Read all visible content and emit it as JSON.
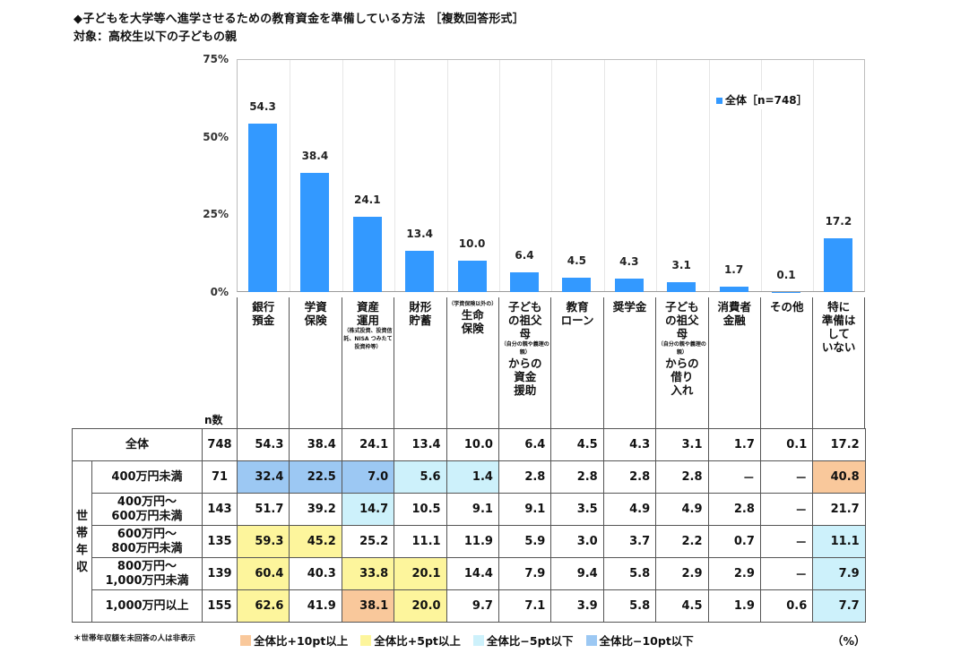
{
  "header": {
    "title": "◆子どもを大学等へ進学させるための教育資金を準備している方法 ［複数回答形式］",
    "subtitle": "対象：高校生以下の子どもの親"
  },
  "legend": {
    "label": "全体［n=748］",
    "color": "#3399ff"
  },
  "yaxis": {
    "ticks": [
      "75%",
      "50%",
      "25%",
      "0%"
    ]
  },
  "categories": [
    {
      "lines": [
        "銀行",
        "預金"
      ],
      "note": ""
    },
    {
      "lines": [
        "学資",
        "保険"
      ],
      "note": ""
    },
    {
      "lines": [
        "資産",
        "運用"
      ],
      "note": "（株式投資、投資信託、NISA つみたて 投資枠等）"
    },
    {
      "lines": [
        "財形",
        "貯蓄"
      ],
      "note": ""
    },
    {
      "pre": "（学資保険以外の）",
      "lines": [
        "生命",
        "保険"
      ],
      "note": ""
    },
    {
      "lines": [
        "子ども",
        "の祖父",
        "母"
      ],
      "note": "（自分の親や義理の親）",
      "post": [
        "からの",
        "資金",
        "援助"
      ]
    },
    {
      "lines": [
        "教育",
        "ローン"
      ],
      "note": ""
    },
    {
      "lines": [
        "奨学金"
      ],
      "note": ""
    },
    {
      "lines": [
        "子ども",
        "の祖父",
        "母"
      ],
      "note": "（自分の親や義理の親）",
      "post": [
        "からの",
        "借り",
        "入れ"
      ]
    },
    {
      "lines": [
        "消費者",
        "金融"
      ],
      "note": ""
    },
    {
      "lines": [
        "その他"
      ],
      "note": ""
    },
    {
      "lines": [
        "特に",
        "準備は",
        "して",
        "いない"
      ],
      "note": ""
    }
  ],
  "table": {
    "n_label": "n数",
    "group_label": "世帯年収",
    "rows": [
      {
        "label": "全体",
        "n": "748",
        "values": [
          "54.3",
          "38.4",
          "24.1",
          "13.4",
          "10.0",
          "6.4",
          "4.5",
          "4.3",
          "3.1",
          "1.7",
          "0.1",
          "17.2"
        ],
        "flags": [
          "",
          "",
          "",
          "",
          "",
          "",
          "",
          "",
          "",
          "",
          "",
          ""
        ]
      },
      {
        "label": "400万円未満",
        "n": "71",
        "values": [
          "32.4",
          "22.5",
          "7.0",
          "5.6",
          "1.4",
          "2.8",
          "2.8",
          "2.8",
          "2.8",
          "－",
          "－",
          "40.8"
        ],
        "flags": [
          "m10",
          "m10",
          "m10",
          "m5",
          "m5",
          "",
          "",
          "",
          "",
          "",
          "",
          "p10"
        ]
      },
      {
        "label": "400万円～\n600万円未満",
        "n": "143",
        "values": [
          "51.7",
          "39.2",
          "14.7",
          "10.5",
          "9.1",
          "9.1",
          "3.5",
          "4.9",
          "4.9",
          "2.8",
          "－",
          "21.7"
        ],
        "flags": [
          "",
          "",
          "m5",
          "",
          "",
          "",
          "",
          "",
          "",
          "",
          "",
          ""
        ]
      },
      {
        "label": "600万円～\n800万円未満",
        "n": "135",
        "values": [
          "59.3",
          "45.2",
          "25.2",
          "11.1",
          "11.9",
          "5.9",
          "3.0",
          "3.7",
          "2.2",
          "0.7",
          "－",
          "11.1"
        ],
        "flags": [
          "p5",
          "p5",
          "",
          "",
          "",
          "",
          "",
          "",
          "",
          "",
          "",
          "m5"
        ]
      },
      {
        "label": "800万円～\n1,000万円未満",
        "n": "139",
        "values": [
          "60.4",
          "40.3",
          "33.8",
          "20.1",
          "14.4",
          "7.9",
          "9.4",
          "5.8",
          "2.9",
          "2.9",
          "－",
          "7.9"
        ],
        "flags": [
          "p5",
          "",
          "p5",
          "p5",
          "",
          "",
          "",
          "",
          "",
          "",
          "",
          "m5"
        ]
      },
      {
        "label": "1,000万円以上",
        "n": "155",
        "values": [
          "62.6",
          "41.9",
          "38.1",
          "20.0",
          "9.7",
          "7.1",
          "3.9",
          "5.8",
          "4.5",
          "1.9",
          "0.6",
          "7.7"
        ],
        "flags": [
          "p5",
          "",
          "p10",
          "p5",
          "",
          "",
          "",
          "",
          "",
          "",
          "",
          "m5"
        ]
      }
    ]
  },
  "footnote": "＊世帯年収額を未回答の人は非表示",
  "keys": [
    {
      "label": "全体比+10pt以上",
      "color": "#f9c89b"
    },
    {
      "label": "全体比+5pt以上",
      "color": "#fdf59c"
    },
    {
      "label": "全体比−5pt以下",
      "color": "#cdf1fb"
    },
    {
      "label": "全体比−10pt以下",
      "color": "#9cc8f3"
    }
  ],
  "unit": "（%）",
  "chart_data": {
    "type": "bar",
    "title": "子どもを大学等へ進学させるための教育資金を準備している方法［複数回答形式］",
    "subtitle": "対象：高校生以下の子どもの親",
    "categories": [
      "銀行預金",
      "学資保険",
      "資産運用",
      "財形貯蓄",
      "（学資保険以外の）生命保険",
      "子どもの祖父母からの資金援助",
      "教育ローン",
      "奨学金",
      "子どもの祖父母からの借り入れ",
      "消費者金融",
      "その他",
      "特に準備はしていない"
    ],
    "series": [
      {
        "name": "全体［n=748］",
        "values": [
          54.3,
          38.4,
          24.1,
          13.4,
          10.0,
          6.4,
          4.5,
          4.3,
          3.1,
          1.7,
          0.1,
          17.2
        ]
      }
    ],
    "xlabel": "",
    "ylabel": "",
    "ylim": [
      0,
      75
    ],
    "yticks": [
      "0%",
      "25%",
      "50%",
      "75%"
    ],
    "legend_position": "top-right",
    "grid": "vertical separators"
  }
}
